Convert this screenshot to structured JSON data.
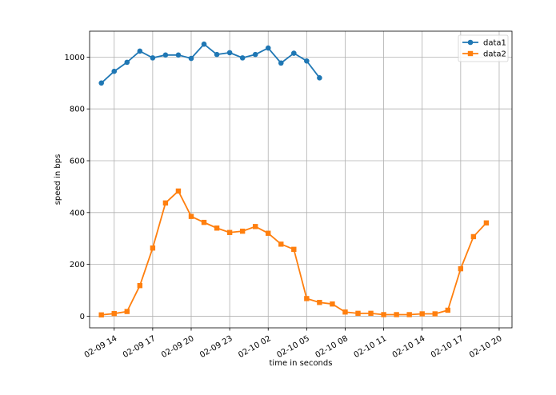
{
  "chart_data": {
    "type": "line",
    "xlabel": "time in seconds",
    "ylabel": "speed in bps",
    "ylim": [
      -45,
      1100
    ],
    "xlim": [
      "2022-02-09 12:05",
      "2022-02-10 21:00"
    ],
    "grid": true,
    "legend_position": "top-right",
    "x_ticks": [
      {
        "value": "2022-02-09 14:00",
        "label": "02-09 14"
      },
      {
        "value": "2022-02-09 17:00",
        "label": "02-09 17"
      },
      {
        "value": "2022-02-09 20:00",
        "label": "02-09 20"
      },
      {
        "value": "2022-02-09 23:00",
        "label": "02-09 23"
      },
      {
        "value": "2022-02-10 02:00",
        "label": "02-10 02"
      },
      {
        "value": "2022-02-10 05:00",
        "label": "02-10 05"
      },
      {
        "value": "2022-02-10 08:00",
        "label": "02-10 08"
      },
      {
        "value": "2022-02-10 11:00",
        "label": "02-10 11"
      },
      {
        "value": "2022-02-10 14:00",
        "label": "02-10 14"
      },
      {
        "value": "2022-02-10 17:00",
        "label": "02-10 17"
      },
      {
        "value": "2022-02-10 20:00",
        "label": "02-10 20"
      }
    ],
    "y_ticks": [
      0,
      200,
      400,
      600,
      800,
      1000
    ],
    "series": [
      {
        "name": "data1",
        "color": "#1f77b4",
        "marker": "circle",
        "x": [
          "2022-02-09 13:00",
          "2022-02-09 14:00",
          "2022-02-09 15:00",
          "2022-02-09 16:00",
          "2022-02-09 17:00",
          "2022-02-09 18:00",
          "2022-02-09 19:00",
          "2022-02-09 20:00",
          "2022-02-09 21:00",
          "2022-02-09 22:00",
          "2022-02-09 23:00",
          "2022-02-10 00:00",
          "2022-02-10 01:00",
          "2022-02-10 02:00",
          "2022-02-10 03:00",
          "2022-02-10 04:00",
          "2022-02-10 05:00",
          "2022-02-10 06:00"
        ],
        "y": [
          900,
          945,
          980,
          1023,
          997,
          1008,
          1008,
          995,
          1050,
          1010,
          1017,
          997,
          1010,
          1035,
          977,
          1015,
          985,
          920
        ]
      },
      {
        "name": "data2",
        "color": "#ff7f0e",
        "marker": "square",
        "x": [
          "2022-02-09 13:00",
          "2022-02-09 14:00",
          "2022-02-09 15:00",
          "2022-02-09 16:00",
          "2022-02-09 17:00",
          "2022-02-09 18:00",
          "2022-02-09 19:00",
          "2022-02-09 20:00",
          "2022-02-09 21:00",
          "2022-02-09 22:00",
          "2022-02-09 23:00",
          "2022-02-10 00:00",
          "2022-02-10 01:00",
          "2022-02-10 02:00",
          "2022-02-10 03:00",
          "2022-02-10 04:00",
          "2022-02-10 05:00",
          "2022-02-10 06:00",
          "2022-02-10 07:00",
          "2022-02-10 08:00",
          "2022-02-10 09:00",
          "2022-02-10 10:00",
          "2022-02-10 11:00",
          "2022-02-10 12:00",
          "2022-02-10 13:00",
          "2022-02-10 14:00",
          "2022-02-10 15:00",
          "2022-02-10 16:00",
          "2022-02-10 17:00",
          "2022-02-10 18:00",
          "2022-02-10 19:00"
        ],
        "y": [
          5,
          10,
          18,
          118,
          263,
          437,
          483,
          385,
          362,
          340,
          323,
          328,
          346,
          320,
          278,
          258,
          68,
          53,
          47,
          16,
          11,
          11,
          6,
          6,
          6,
          9,
          9,
          23,
          183,
          307,
          360
        ]
      }
    ]
  }
}
